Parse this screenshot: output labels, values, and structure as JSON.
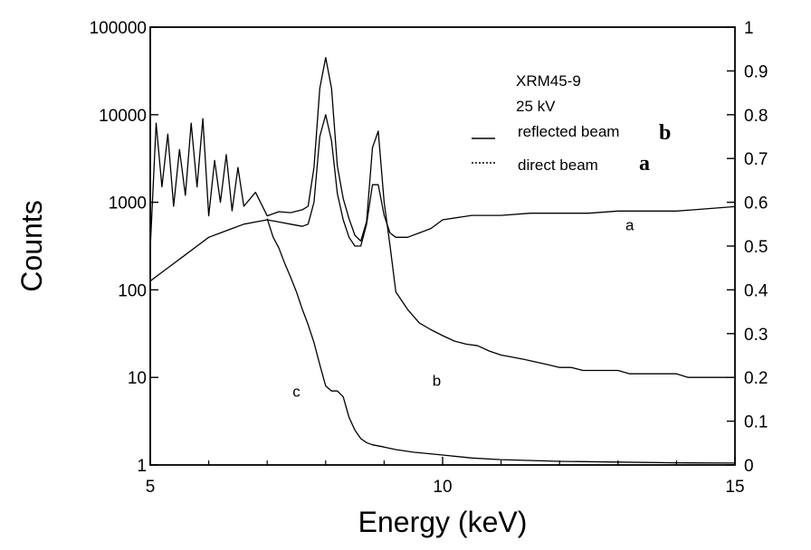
{
  "chart_data": {
    "type": "line",
    "title": "",
    "xlabel": "Energy (keV)",
    "ylabel": "Counts",
    "xlim": [
      5,
      15
    ],
    "ylim": [
      1,
      100000
    ],
    "y_scale": "log",
    "y2lim": [
      0,
      1
    ],
    "x_ticks": [
      5,
      10,
      15
    ],
    "x_tick_labels": [
      "5",
      "10",
      "15"
    ],
    "y_ticks": [
      1,
      10,
      100,
      1000,
      10000,
      100000
    ],
    "y_tick_labels": [
      "1",
      "10",
      "100",
      "1000",
      "10000",
      "100000"
    ],
    "y2_ticks": [
      0,
      0.1,
      0.2,
      0.3,
      0.4,
      0.5,
      0.6,
      0.7,
      0.8,
      0.9,
      1
    ],
    "y2_tick_labels": [
      "0",
      "0.1",
      "0.2",
      "0.3",
      "0.4",
      "0.5",
      "0.6",
      "0.7",
      "0.8",
      "0.9",
      "1"
    ],
    "grid": false,
    "legend_position": "top-right",
    "legend": {
      "lines": [
        "XRM45-9",
        "25 kV"
      ],
      "entries": [
        {
          "label": "reflected beam",
          "letter": "b",
          "style": "solid"
        },
        {
          "label": "direct beam",
          "letter": "a",
          "style": "dotted"
        }
      ]
    },
    "curve_labels": [
      {
        "text": "a",
        "x": 13.2,
        "y": 480
      },
      {
        "text": "b",
        "x": 9.9,
        "y": 8
      },
      {
        "text": "c",
        "x": 7.5,
        "y": 6
      }
    ],
    "series": [
      {
        "name": "a",
        "axis": "right",
        "x": [
          5.0,
          5.2,
          5.4,
          5.6,
          5.8,
          6.0,
          6.2,
          6.4,
          6.6,
          6.8,
          7.0,
          7.2,
          7.4,
          7.6,
          7.7,
          7.8,
          7.9,
          8.0,
          8.1,
          8.2,
          8.3,
          8.4,
          8.5,
          8.6,
          8.7,
          8.8,
          8.9,
          9.0,
          9.1,
          9.2,
          9.4,
          9.6,
          9.8,
          10.0,
          10.5,
          11.0,
          11.5,
          12.0,
          12.5,
          13.0,
          13.5,
          14.0,
          14.5,
          15.0
        ],
        "values": [
          0.42,
          0.44,
          0.46,
          0.48,
          0.5,
          0.52,
          0.53,
          0.54,
          0.55,
          0.555,
          0.56,
          0.555,
          0.55,
          0.545,
          0.55,
          0.6,
          0.75,
          0.8,
          0.74,
          0.62,
          0.56,
          0.52,
          0.5,
          0.5,
          0.55,
          0.64,
          0.64,
          0.57,
          0.53,
          0.52,
          0.52,
          0.53,
          0.54,
          0.56,
          0.57,
          0.57,
          0.575,
          0.575,
          0.575,
          0.58,
          0.58,
          0.58,
          0.585,
          0.59
        ]
      },
      {
        "name": "b",
        "axis": "left",
        "x": [
          5.0,
          5.1,
          5.2,
          5.3,
          5.4,
          5.5,
          5.6,
          5.7,
          5.8,
          5.9,
          6.0,
          6.1,
          6.2,
          6.3,
          6.4,
          6.5,
          6.6,
          6.8,
          7.0,
          7.2,
          7.4,
          7.6,
          7.7,
          7.8,
          7.9,
          8.0,
          8.1,
          8.2,
          8.3,
          8.4,
          8.5,
          8.6,
          8.7,
          8.8,
          8.9,
          9.0,
          9.1,
          9.2,
          9.4,
          9.6,
          9.8,
          10.0,
          10.2,
          10.4,
          10.6,
          10.8,
          11.0,
          11.2,
          11.4,
          11.6,
          11.8,
          12.0,
          12.2,
          12.4,
          12.6,
          12.8,
          13.0,
          13.2,
          13.4,
          13.6,
          13.8,
          14.0,
          14.2,
          14.4,
          14.6,
          14.8,
          15.0
        ],
        "values": [
          300,
          8000,
          1500,
          6000,
          900,
          4000,
          1200,
          8000,
          1500,
          9000,
          700,
          3000,
          1000,
          3500,
          800,
          2500,
          900,
          1300,
          700,
          780,
          760,
          820,
          900,
          2500,
          20000,
          45000,
          20000,
          2600,
          1100,
          650,
          420,
          360,
          600,
          4200,
          6500,
          1000,
          320,
          95,
          60,
          42,
          35,
          30,
          26,
          24,
          23,
          20,
          18,
          17,
          16,
          15,
          14,
          13,
          13,
          12,
          12,
          12,
          12,
          11,
          11,
          11,
          11,
          11,
          10,
          10,
          10,
          10,
          10
        ]
      },
      {
        "name": "c",
        "axis": "left",
        "x": [
          7.0,
          7.1,
          7.2,
          7.3,
          7.4,
          7.5,
          7.6,
          7.7,
          7.8,
          7.9,
          8.0,
          8.1,
          8.2,
          8.3,
          8.4,
          8.5,
          8.6,
          8.7,
          8.8,
          9.0,
          9.2,
          9.5,
          10.0,
          10.5,
          11.0,
          12.0,
          13.0,
          14.0,
          15.0
        ],
        "values": [
          650,
          400,
          300,
          200,
          140,
          95,
          60,
          40,
          25,
          14,
          8,
          7,
          7,
          6,
          3.5,
          2.5,
          2.0,
          1.8,
          1.7,
          1.6,
          1.5,
          1.4,
          1.3,
          1.2,
          1.15,
          1.1,
          1.08,
          1.06,
          1.05
        ]
      }
    ]
  }
}
